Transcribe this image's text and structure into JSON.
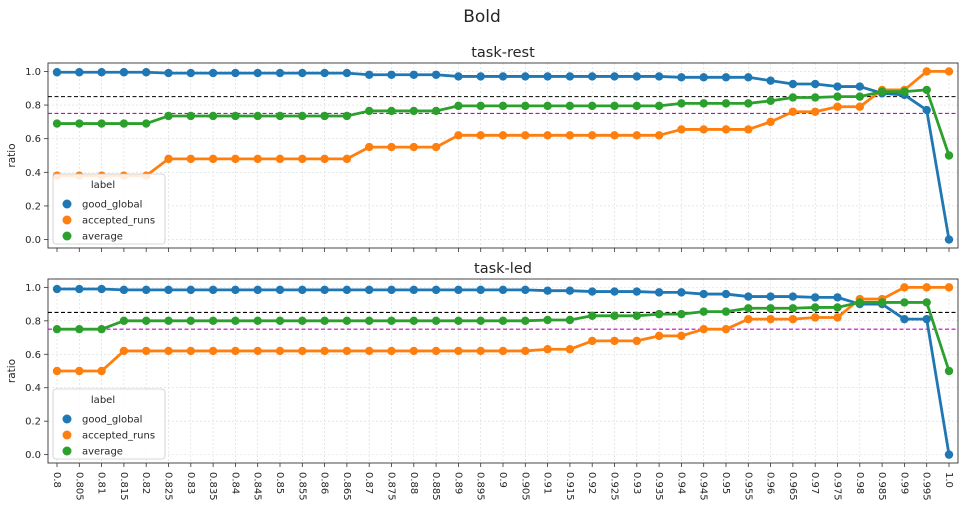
{
  "figure": {
    "title": "Bold"
  },
  "colors": {
    "good_global": "#1f77b4",
    "accepted_runs": "#ff7f0e",
    "average": "#2ca02c",
    "ref_line_black": "#000000",
    "ref_line_magenta": "#cc00cc",
    "grid": "#d9d9d9"
  },
  "chart_data": [
    {
      "type": "line",
      "title": "task-rest",
      "xlabel": "",
      "ylabel": "ratio",
      "ylim": [
        -0.05,
        1.05
      ],
      "yticks": [
        "0.0",
        "0.2",
        "0.4",
        "0.6",
        "0.8",
        "1.0"
      ],
      "grid": true,
      "legend": {
        "title": "label",
        "placement": "lower-left"
      },
      "reference_lines": [
        0.85,
        0.75
      ],
      "categories": [
        "0.8",
        "0.805",
        "0.81",
        "0.815",
        "0.82",
        "0.825",
        "0.83",
        "0.835",
        "0.84",
        "0.845",
        "0.85",
        "0.855",
        "0.86",
        "0.865",
        "0.87",
        "0.875",
        "0.88",
        "0.885",
        "0.89",
        "0.895",
        "0.9",
        "0.905",
        "0.91",
        "0.915",
        "0.92",
        "0.925",
        "0.93",
        "0.935",
        "0.94",
        "0.945",
        "0.95",
        "0.955",
        "0.96",
        "0.965",
        "0.97",
        "0.975",
        "0.98",
        "0.985",
        "0.99",
        "0.995",
        "1.0"
      ],
      "series": [
        {
          "name": "good_global",
          "values": [
            0.995,
            0.995,
            0.995,
            0.995,
            0.995,
            0.99,
            0.99,
            0.99,
            0.99,
            0.99,
            0.99,
            0.99,
            0.99,
            0.99,
            0.98,
            0.98,
            0.98,
            0.98,
            0.97,
            0.97,
            0.97,
            0.97,
            0.97,
            0.97,
            0.97,
            0.97,
            0.97,
            0.97,
            0.965,
            0.965,
            0.965,
            0.965,
            0.945,
            0.925,
            0.925,
            0.91,
            0.91,
            0.87,
            0.86,
            0.77,
            0.0
          ]
        },
        {
          "name": "accepted_runs",
          "values": [
            0.38,
            0.38,
            0.38,
            0.38,
            0.38,
            0.48,
            0.48,
            0.48,
            0.48,
            0.48,
            0.48,
            0.48,
            0.48,
            0.48,
            0.55,
            0.55,
            0.55,
            0.55,
            0.62,
            0.62,
            0.62,
            0.62,
            0.62,
            0.62,
            0.62,
            0.62,
            0.62,
            0.62,
            0.655,
            0.655,
            0.655,
            0.655,
            0.7,
            0.76,
            0.76,
            0.79,
            0.79,
            0.89,
            0.89,
            1.0,
            1.0
          ]
        },
        {
          "name": "average",
          "values": [
            0.69,
            0.69,
            0.69,
            0.69,
            0.69,
            0.735,
            0.735,
            0.735,
            0.735,
            0.735,
            0.735,
            0.735,
            0.735,
            0.735,
            0.765,
            0.765,
            0.765,
            0.765,
            0.795,
            0.795,
            0.795,
            0.795,
            0.795,
            0.795,
            0.795,
            0.795,
            0.795,
            0.795,
            0.81,
            0.81,
            0.81,
            0.81,
            0.825,
            0.845,
            0.845,
            0.85,
            0.85,
            0.88,
            0.88,
            0.89,
            0.5
          ]
        }
      ]
    },
    {
      "type": "line",
      "title": "task-led",
      "xlabel": "",
      "ylabel": "ratio",
      "ylim": [
        -0.05,
        1.05
      ],
      "yticks": [
        "0.0",
        "0.2",
        "0.4",
        "0.6",
        "0.8",
        "1.0"
      ],
      "grid": true,
      "legend": {
        "title": "label",
        "placement": "lower-left"
      },
      "reference_lines": [
        0.85,
        0.75
      ],
      "categories": [
        "0.8",
        "0.805",
        "0.81",
        "0.815",
        "0.82",
        "0.825",
        "0.83",
        "0.835",
        "0.84",
        "0.845",
        "0.85",
        "0.855",
        "0.86",
        "0.865",
        "0.87",
        "0.875",
        "0.88",
        "0.885",
        "0.89",
        "0.895",
        "0.9",
        "0.905",
        "0.91",
        "0.915",
        "0.92",
        "0.925",
        "0.93",
        "0.935",
        "0.94",
        "0.945",
        "0.95",
        "0.955",
        "0.96",
        "0.965",
        "0.97",
        "0.975",
        "0.98",
        "0.985",
        "0.99",
        "0.995",
        "1.0"
      ],
      "series": [
        {
          "name": "good_global",
          "values": [
            0.99,
            0.99,
            0.99,
            0.985,
            0.985,
            0.985,
            0.985,
            0.985,
            0.985,
            0.985,
            0.985,
            0.985,
            0.985,
            0.985,
            0.985,
            0.985,
            0.985,
            0.985,
            0.985,
            0.985,
            0.985,
            0.985,
            0.98,
            0.98,
            0.975,
            0.975,
            0.975,
            0.97,
            0.97,
            0.96,
            0.96,
            0.945,
            0.945,
            0.945,
            0.94,
            0.94,
            0.9,
            0.9,
            0.81,
            0.81,
            0.0
          ]
        },
        {
          "name": "accepted_runs",
          "values": [
            0.5,
            0.5,
            0.5,
            0.62,
            0.62,
            0.62,
            0.62,
            0.62,
            0.62,
            0.62,
            0.62,
            0.62,
            0.62,
            0.62,
            0.62,
            0.62,
            0.62,
            0.62,
            0.62,
            0.62,
            0.62,
            0.62,
            0.63,
            0.63,
            0.68,
            0.68,
            0.68,
            0.71,
            0.71,
            0.75,
            0.75,
            0.81,
            0.81,
            0.81,
            0.82,
            0.82,
            0.93,
            0.93,
            1.0,
            1.0,
            1.0
          ]
        },
        {
          "name": "average",
          "values": [
            0.75,
            0.75,
            0.75,
            0.8,
            0.8,
            0.8,
            0.8,
            0.8,
            0.8,
            0.8,
            0.8,
            0.8,
            0.8,
            0.8,
            0.8,
            0.8,
            0.8,
            0.8,
            0.8,
            0.8,
            0.8,
            0.8,
            0.805,
            0.805,
            0.83,
            0.83,
            0.83,
            0.84,
            0.84,
            0.855,
            0.855,
            0.875,
            0.875,
            0.875,
            0.88,
            0.88,
            0.91,
            0.91,
            0.91,
            0.91,
            0.5
          ]
        }
      ]
    }
  ]
}
